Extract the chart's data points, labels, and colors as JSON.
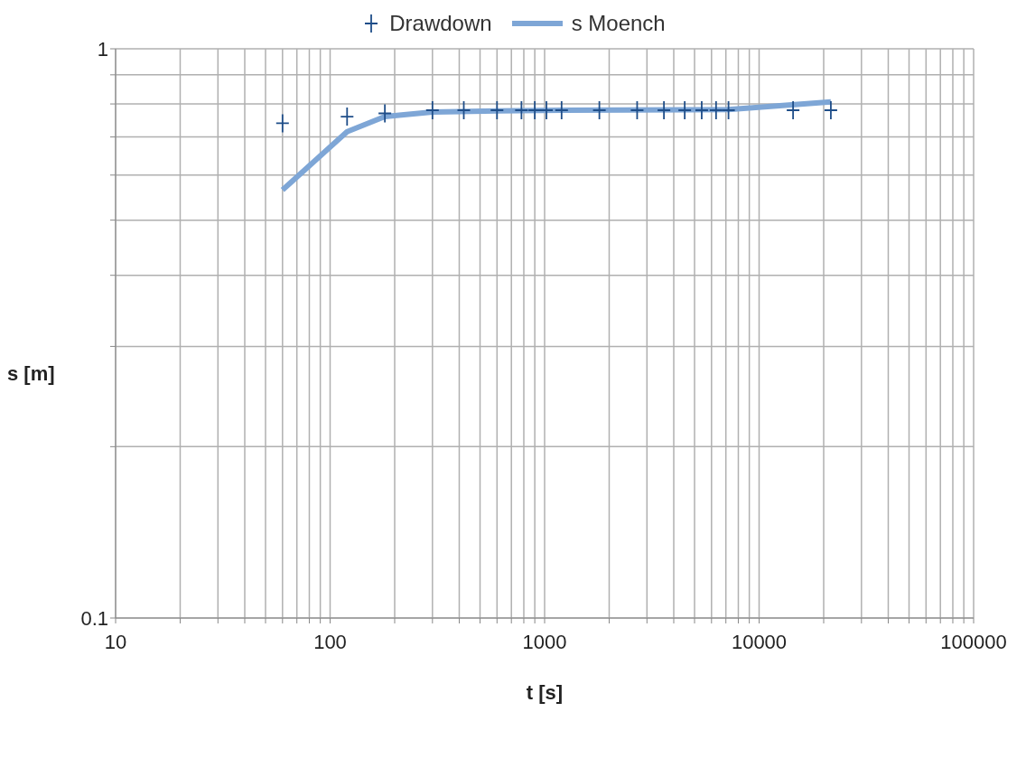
{
  "chart_data": {
    "type": "scatter",
    "xlabel": "t [s]",
    "ylabel": "s [m]",
    "log": "xy",
    "grid": true,
    "legend": "top",
    "xlim": [
      10,
      100000
    ],
    "ylim": [
      0.1,
      1
    ],
    "xticks": [
      10,
      {
        "value": 20,
        "label": null
      },
      {
        "value": 30,
        "label": null
      },
      {
        "value": 40,
        "label": null
      },
      {
        "value": 50,
        "label": null
      },
      {
        "value": 60,
        "label": null
      },
      {
        "value": 70,
        "label": null
      },
      {
        "value": 80,
        "label": null
      },
      {
        "value": 90,
        "label": null
      },
      100,
      {
        "value": 200,
        "label": null
      },
      {
        "value": 300,
        "label": null
      },
      {
        "value": 400,
        "label": null
      },
      {
        "value": 500,
        "label": null
      },
      {
        "value": 600,
        "label": null
      },
      {
        "value": 700,
        "label": null
      },
      {
        "value": 800,
        "label": null
      },
      {
        "value": 900,
        "label": null
      },
      1000,
      {
        "value": 2000,
        "label": null
      },
      {
        "value": 3000,
        "label": null
      },
      {
        "value": 4000,
        "label": null
      },
      {
        "value": 5000,
        "label": null
      },
      {
        "value": 6000,
        "label": null
      },
      {
        "value": 7000,
        "label": null
      },
      {
        "value": 8000,
        "label": null
      },
      {
        "value": 9000,
        "label": null
      },
      10000,
      {
        "value": 20000,
        "label": null
      },
      {
        "value": 30000,
        "label": null
      },
      {
        "value": 40000,
        "label": null
      },
      {
        "value": 50000,
        "label": null
      },
      {
        "value": 60000,
        "label": null
      },
      {
        "value": 70000,
        "label": null
      },
      {
        "value": 80000,
        "label": null
      },
      {
        "value": 90000,
        "label": null
      },
      100000
    ],
    "yticks": [
      0.1,
      {
        "value": 0.2,
        "label": null
      },
      {
        "value": 0.3,
        "label": null
      },
      {
        "value": 0.4,
        "label": null
      },
      {
        "value": 0.5,
        "label": null
      },
      {
        "value": 0.6,
        "label": null
      },
      {
        "value": 0.7,
        "label": null
      },
      {
        "value": 0.8,
        "label": null
      },
      {
        "value": 0.9,
        "label": null
      },
      1
    ],
    "series": [
      {
        "name": "Drawdown",
        "marker": "cross",
        "color": "#1f4e89",
        "x": [
          60,
          120,
          180,
          300,
          420,
          600,
          780,
          900,
          1020,
          1200,
          1800,
          2700,
          3600,
          4500,
          5400,
          6300,
          7200,
          14400,
          21600
        ],
        "values": [
          0.74,
          0.76,
          0.77,
          0.78,
          0.78,
          0.78,
          0.78,
          0.78,
          0.78,
          0.78,
          0.78,
          0.78,
          0.78,
          0.78,
          0.78,
          0.78,
          0.78,
          0.78,
          0.78
        ]
      },
      {
        "name": "s Moench",
        "type": "line",
        "marker": "none",
        "line_style": "solid",
        "color": "#7ea6d6",
        "x": [
          60,
          120,
          180,
          300,
          600,
          1200,
          7200,
          21600
        ],
        "values": [
          0.565,
          0.715,
          0.76,
          0.774,
          0.778,
          0.78,
          0.782,
          0.807
        ]
      }
    ]
  }
}
